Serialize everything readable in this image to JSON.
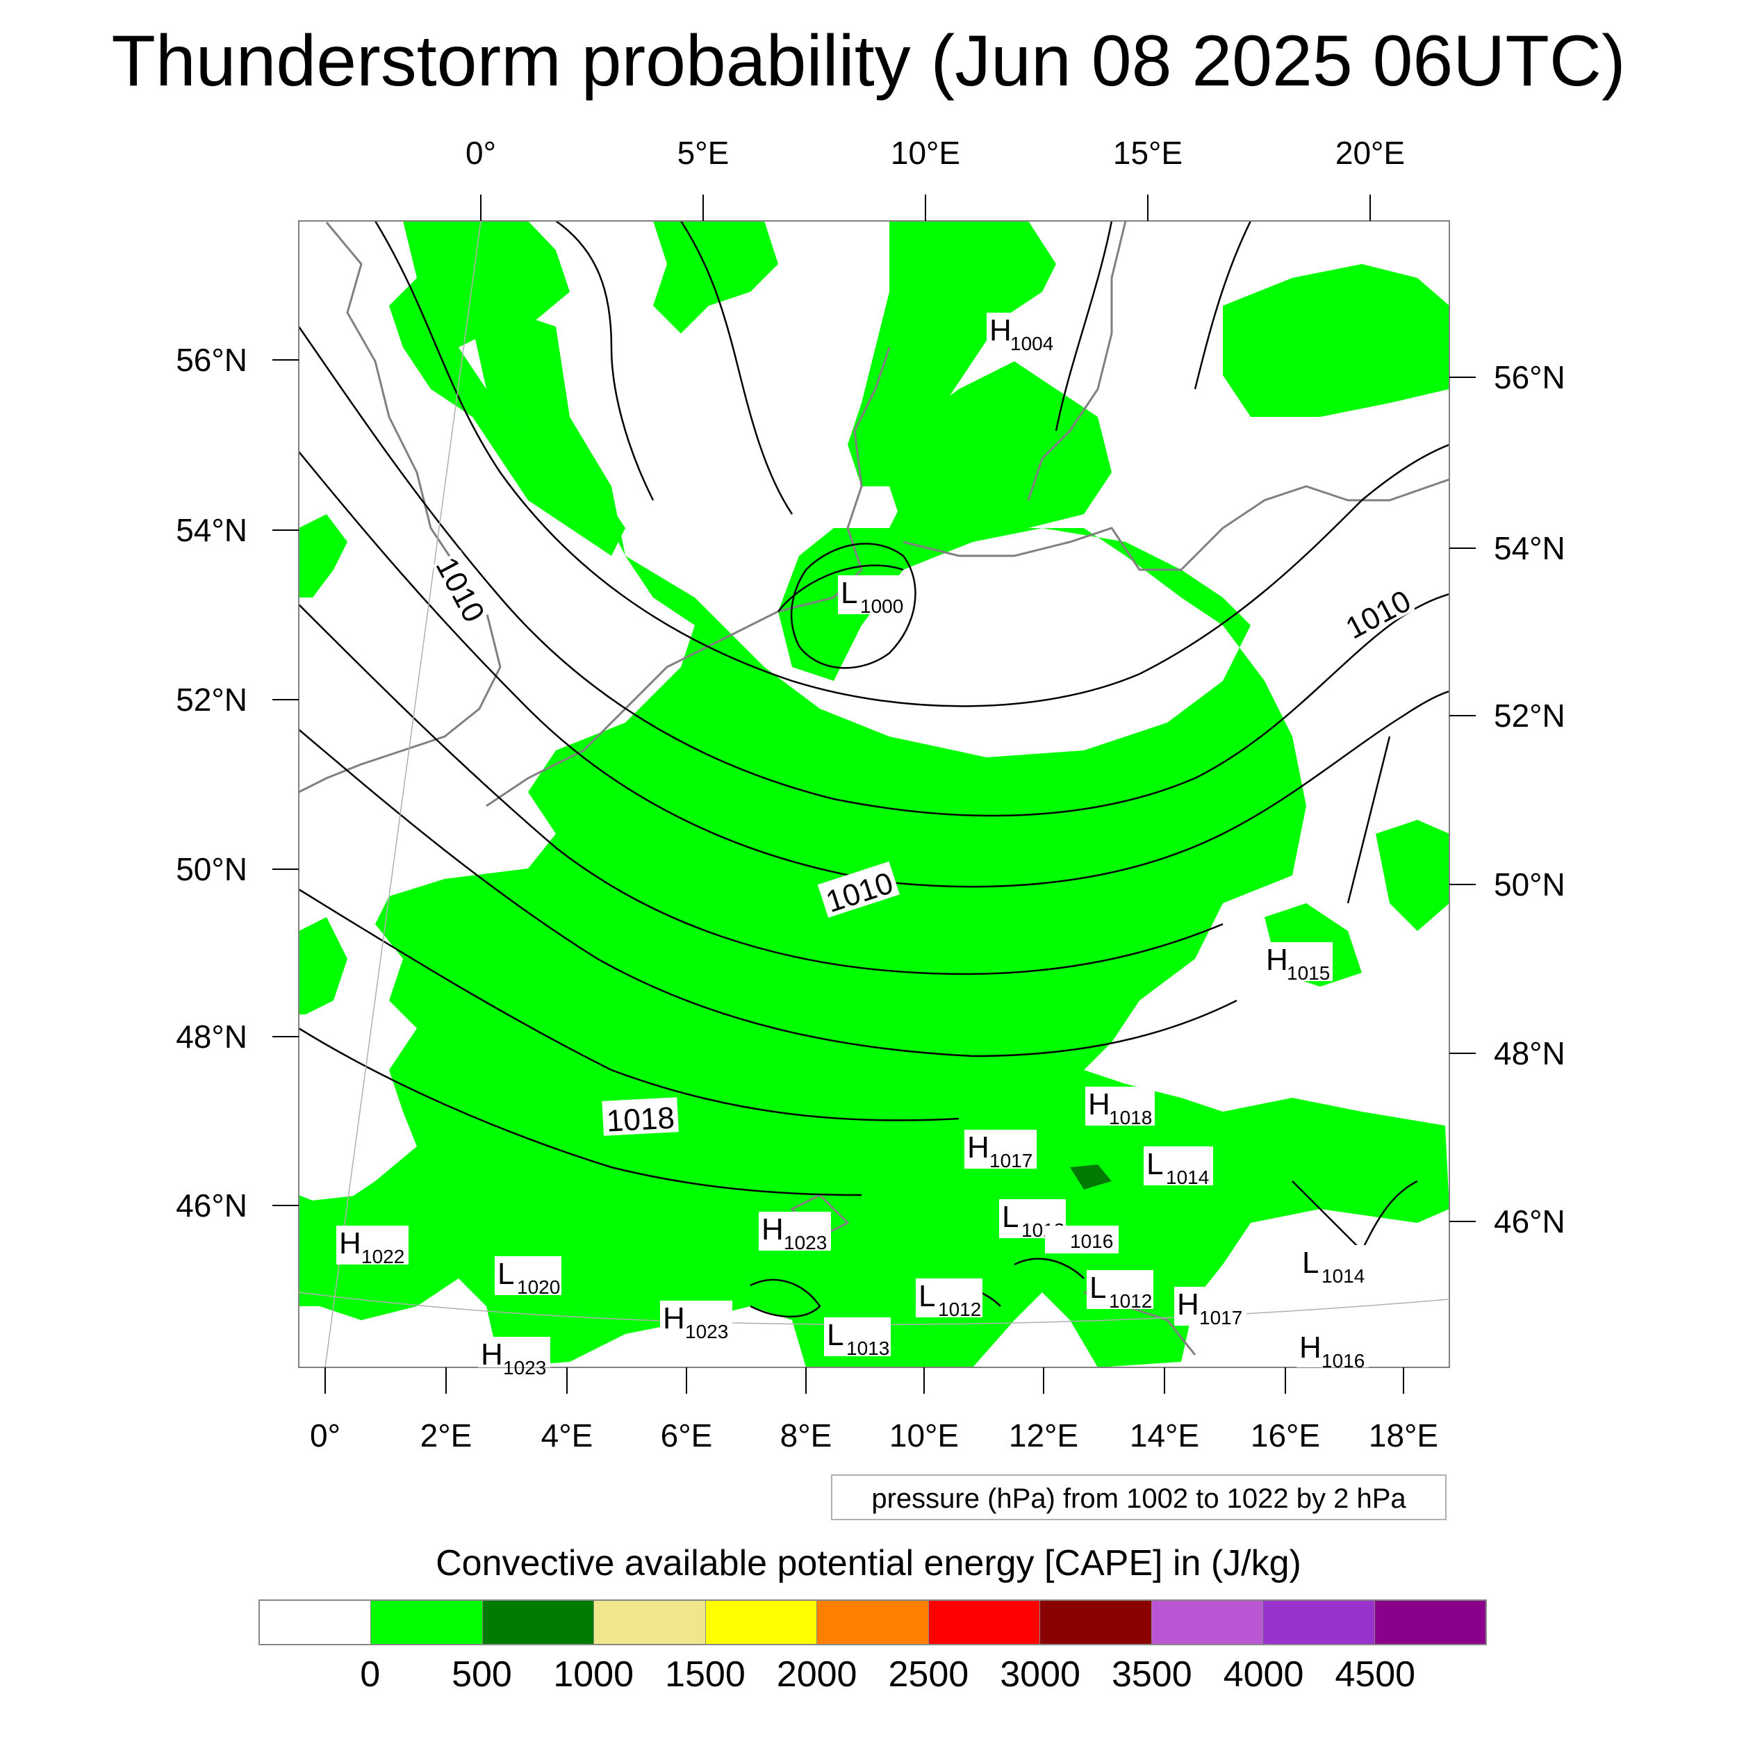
{
  "title": "Thunderstorm probability (Jun 08 2025 06UTC)",
  "top_lon_labels": [
    "0°",
    "5°E",
    "10°E",
    "15°E",
    "20°E"
  ],
  "bottom_lon_labels": [
    "0°",
    "2°E",
    "4°E",
    "6°E",
    "8°E",
    "10°E",
    "12°E",
    "14°E",
    "16°E",
    "18°E"
  ],
  "left_lat_labels": [
    "56°N",
    "54°N",
    "52°N",
    "50°N",
    "48°N",
    "46°N"
  ],
  "right_lat_labels": [
    "56°N",
    "54°N",
    "52°N",
    "50°N",
    "48°N",
    "46°N"
  ],
  "contour_labels": [
    "1010",
    "1010",
    "1010",
    "1018"
  ],
  "pressure_centers": [
    {
      "type": "H",
      "value": "1004"
    },
    {
      "type": "L",
      "value": "1000"
    },
    {
      "type": "H",
      "value": "1015"
    },
    {
      "type": "H",
      "value": "1018"
    },
    {
      "type": "H",
      "value": "1017"
    },
    {
      "type": "L",
      "value": "1014"
    },
    {
      "type": "L",
      "value": "1013"
    },
    {
      "type": "H",
      "value": "1022"
    },
    {
      "type": "L",
      "value": "1020"
    },
    {
      "type": "H",
      "value": "1023"
    },
    {
      "type": "H",
      "value": "1023"
    },
    {
      "type": "H",
      "value": "1023"
    },
    {
      "type": "L",
      "value": "1012"
    },
    {
      "type": "L",
      "value": "1012"
    },
    {
      "type": "L",
      "value": "1013"
    },
    {
      "type": "H",
      "value": "1017"
    },
    {
      "type": "L",
      "value": "1014"
    },
    {
      "type": "H",
      "value": "1016"
    }
  ],
  "isolated_value_label": "1016",
  "pressure_note": "pressure (hPa) from 1002 to 1022 by 2 hPa",
  "colorbar": {
    "title": "Convective available potential energy [CAPE] in (J/kg)",
    "colors": [
      "#ffffff",
      "#00ff00",
      "#007a00",
      "#f0e68c",
      "#ffff00",
      "#ff8000",
      "#ff0000",
      "#8b0000",
      "#ba55d3",
      "#9932cc",
      "#8b008b"
    ],
    "labels": [
      "0",
      "500",
      "1000",
      "1500",
      "2000",
      "2500",
      "3000",
      "3500",
      "4000",
      "4500"
    ]
  },
  "colors": {
    "cape_low": "#00ff00",
    "cape_mid": "#007a00",
    "coastline": "#808080",
    "isobar": "#000000"
  }
}
